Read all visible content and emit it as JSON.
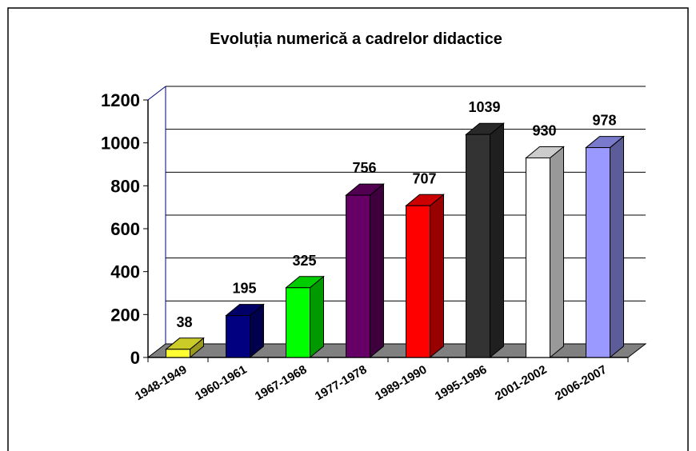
{
  "chart_data": {
    "type": "bar3d",
    "title": "Evoluția numerică a cadrelor didactice",
    "categories": [
      "1948-1949",
      "1960-1961",
      "1967-1968",
      "1977-1978",
      "1989-1990",
      "1995-1996",
      "2001-2002",
      "2006-2007"
    ],
    "values": [
      38,
      195,
      325,
      756,
      707,
      1039,
      930,
      978
    ],
    "colors": [
      "#ffff33",
      "#000080",
      "#00ff00",
      "#660066",
      "#ff0000",
      "#333333",
      "#ffffff",
      "#9999ff"
    ],
    "ylim": [
      0,
      1200
    ],
    "yticks": [
      0,
      200,
      400,
      600,
      800,
      1000,
      1200
    ],
    "grid": true
  }
}
